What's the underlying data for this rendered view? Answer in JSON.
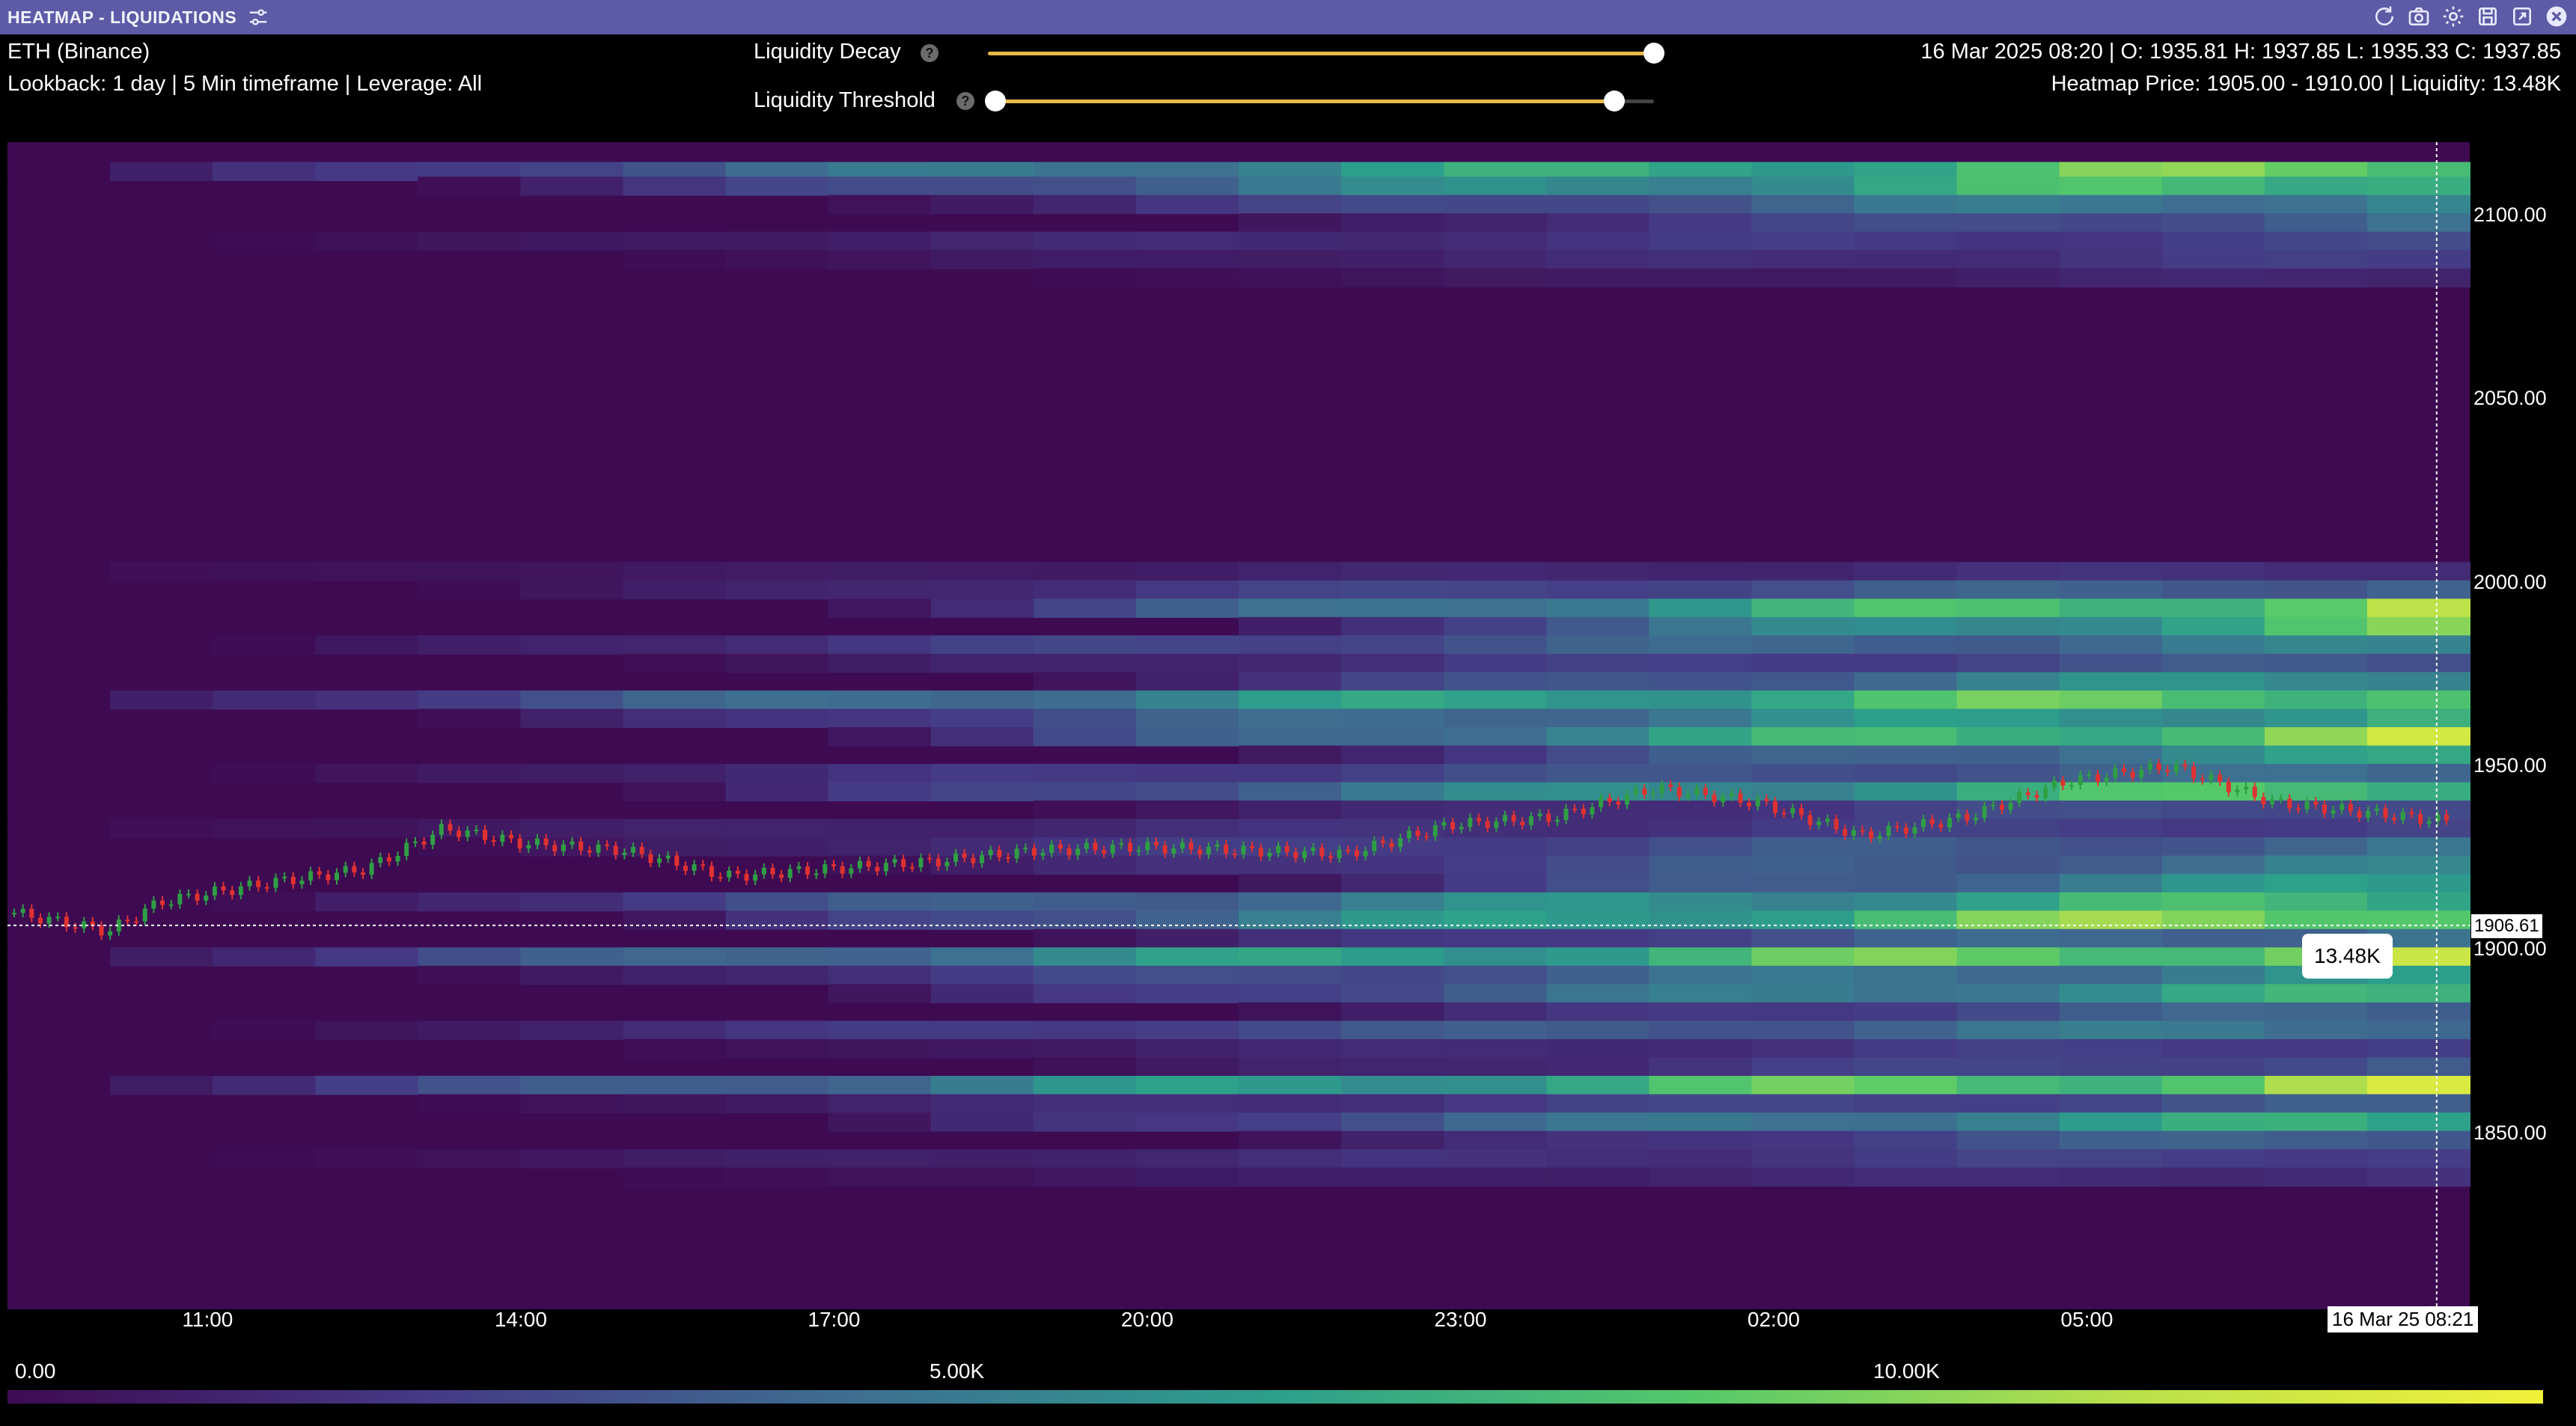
{
  "window": {
    "title": "HEATMAP - LIQUIDATIONS"
  },
  "header": {
    "instrument": "ETH (Binance)",
    "lookback": "Lookback: 1 day | 5 Min timeframe | Leverage: All",
    "ohlc": "16 Mar 2025 08:20 | O: 1935.81 H: 1937.85 L: 1935.33 C: 1937.85",
    "heatmap_info": "Heatmap Price: 1905.00 - 1910.00 | Liquidity: 13.48K"
  },
  "controls": {
    "liquidity_decay": {
      "label": "Liquidity Decay",
      "help": "?",
      "value": 1.0
    },
    "liquidity_threshold": {
      "label": "Liquidity Threshold",
      "help": "?",
      "min": 0.0,
      "max": 0.94
    }
  },
  "colors": {
    "titlebar": "#5d5aa6",
    "background": "#3e0b53",
    "candle_up": "#2f9e44",
    "candle_down": "#e03131",
    "slider_fill": "#e9b84a"
  },
  "icons": [
    "tune-icon",
    "refresh-icon",
    "camera-icon",
    "gear-icon",
    "save-icon",
    "export-icon",
    "close-icon"
  ],
  "crosshair": {
    "price": "1906.61",
    "time": "16 Mar 25 08:21",
    "liquidity": "13.48K"
  },
  "legend": {
    "labels": [
      "0.00",
      "5.00K",
      "10.00K"
    ]
  },
  "chart_data": {
    "type": "heatmap",
    "y_ticks": [
      "2100.00",
      "2050.00",
      "2000.00",
      "1950.00",
      "1900.00",
      "1850.00"
    ],
    "x_ticks": [
      "11:00",
      "14:00",
      "17:00",
      "20:00",
      "23:00",
      "02:00",
      "05:00"
    ],
    "ylim": [
      1802,
      2120
    ],
    "x_range": [
      "15 Mar 2025 09:05",
      "16 Mar 2025 08:40"
    ],
    "colorscale_max": 13.48,
    "liquidity_bands": [
      {
        "price": 2112,
        "max_k": 12
      },
      {
        "price": 2108,
        "max_k": 11
      },
      {
        "price": 2103,
        "max_k": 7
      },
      {
        "price": 2098,
        "max_k": 5
      },
      {
        "price": 2093,
        "max_k": 3
      },
      {
        "price": 2088,
        "max_k": 2.5
      },
      {
        "price": 2083,
        "max_k": 1.5
      },
      {
        "price": 2003,
        "max_k": 2
      },
      {
        "price": 1998,
        "max_k": 5
      },
      {
        "price": 1993,
        "max_k": 13
      },
      {
        "price": 1988,
        "max_k": 11
      },
      {
        "price": 1983,
        "max_k": 6
      },
      {
        "price": 1978,
        "max_k": 4
      },
      {
        "price": 1973,
        "max_k": 8
      },
      {
        "price": 1968,
        "max_k": 12
      },
      {
        "price": 1963,
        "max_k": 9
      },
      {
        "price": 1958,
        "max_k": 13
      },
      {
        "price": 1953,
        "max_k": 8
      },
      {
        "price": 1948,
        "max_k": 5
      },
      {
        "price": 1943,
        "max_k": 11
      },
      {
        "price": 1938,
        "max_k": 4
      },
      {
        "price": 1933,
        "max_k": 3
      },
      {
        "price": 1928,
        "max_k": 5
      },
      {
        "price": 1923,
        "max_k": 6
      },
      {
        "price": 1918,
        "max_k": 8
      },
      {
        "price": 1913,
        "max_k": 10
      },
      {
        "price": 1908,
        "max_k": 13.48
      },
      {
        "price": 1903,
        "max_k": 6
      },
      {
        "price": 1898,
        "max_k": 13
      },
      {
        "price": 1893,
        "max_k": 7
      },
      {
        "price": 1888,
        "max_k": 9
      },
      {
        "price": 1883,
        "max_k": 5
      },
      {
        "price": 1878,
        "max_k": 6
      },
      {
        "price": 1873,
        "max_k": 3
      },
      {
        "price": 1868,
        "max_k": 4
      },
      {
        "price": 1863,
        "max_k": 13
      },
      {
        "price": 1858,
        "max_k": 4
      },
      {
        "price": 1853,
        "max_k": 9
      },
      {
        "price": 1848,
        "max_k": 5
      },
      {
        "price": 1843,
        "max_k": 3
      },
      {
        "price": 1838,
        "max_k": 2
      }
    ],
    "price_path": [
      {
        "t": "09:05",
        "p": 1910
      },
      {
        "t": "10:00",
        "p": 1905
      },
      {
        "t": "10:30",
        "p": 1913
      },
      {
        "t": "11:30",
        "p": 1918
      },
      {
        "t": "12:30",
        "p": 1922
      },
      {
        "t": "13:15",
        "p": 1933
      },
      {
        "t": "14:00",
        "p": 1929
      },
      {
        "t": "15:00",
        "p": 1927
      },
      {
        "t": "16:00",
        "p": 1920
      },
      {
        "t": "17:00",
        "p": 1922
      },
      {
        "t": "18:00",
        "p": 1924
      },
      {
        "t": "19:00",
        "p": 1927
      },
      {
        "t": "20:00",
        "p": 1928
      },
      {
        "t": "21:00",
        "p": 1927
      },
      {
        "t": "22:00",
        "p": 1926
      },
      {
        "t": "23:00",
        "p": 1934
      },
      {
        "t": "00:00",
        "p": 1936
      },
      {
        "t": "01:00",
        "p": 1944
      },
      {
        "t": "02:00",
        "p": 1940
      },
      {
        "t": "03:00",
        "p": 1931
      },
      {
        "t": "04:00",
        "p": 1936
      },
      {
        "t": "05:00",
        "p": 1946
      },
      {
        "t": "06:00",
        "p": 1950
      },
      {
        "t": "07:00",
        "p": 1940
      },
      {
        "t": "08:00",
        "p": 1937
      },
      {
        "t": "08:40",
        "p": 1935
      }
    ]
  }
}
